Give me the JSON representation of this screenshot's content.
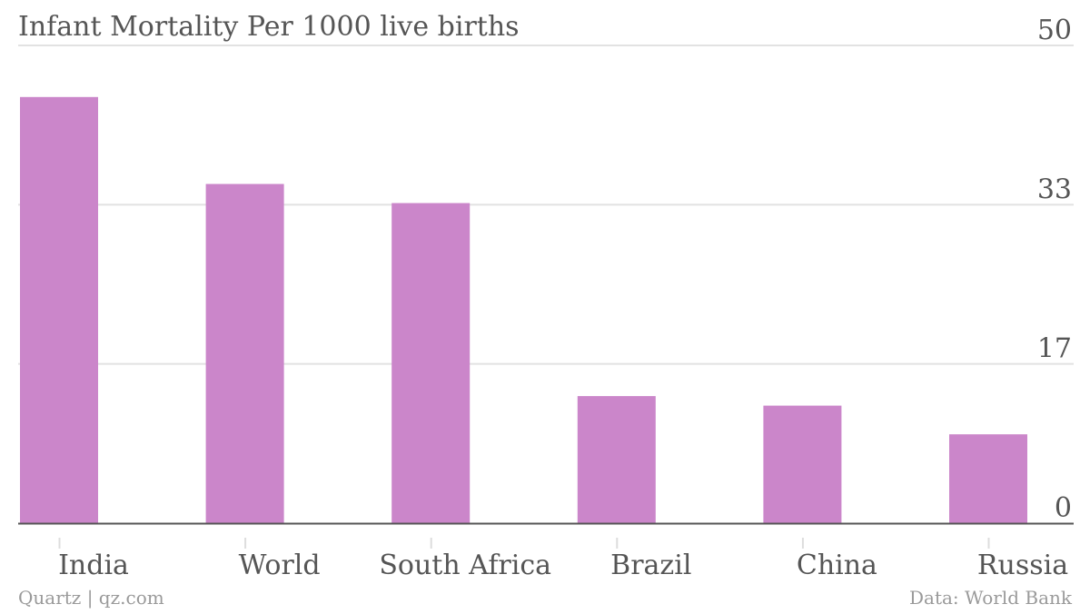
{
  "chart_data": {
    "type": "bar",
    "title": "Infant Mortality Per 1000 live births",
    "xlabel": "",
    "ylabel": "",
    "categories": [
      "India",
      "World",
      "South Africa",
      "Brazil",
      "China",
      "Russia"
    ],
    "values": [
      44.6,
      35.5,
      33.5,
      13.3,
      12.3,
      9.3
    ],
    "ylim": [
      0,
      50
    ],
    "yticks": [
      "0",
      "17",
      "33",
      "50"
    ],
    "ytick_values": [
      0,
      16.67,
      33.33,
      50
    ],
    "grid": true,
    "bar_color": "#cb86ca",
    "axis_position": "right"
  },
  "footer": {
    "source_left": "Quartz | qz.com",
    "source_right": "Data: World Bank"
  }
}
